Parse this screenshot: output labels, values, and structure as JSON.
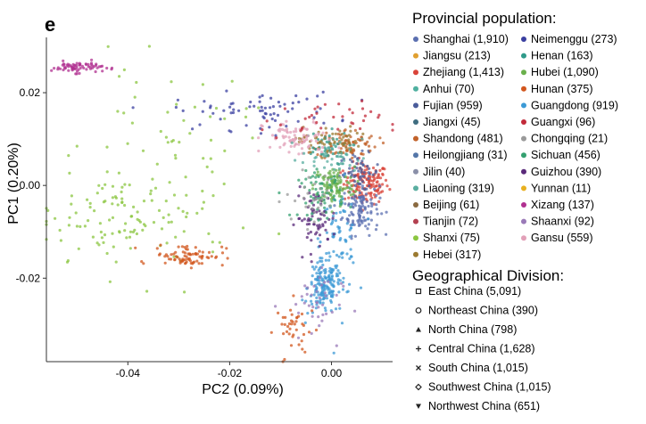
{
  "panel_letter": "e",
  "chart_data": {
    "type": "scatter",
    "xlabel": "PC2 (0.09%)",
    "ylabel": "PC1 (0.20%)",
    "xlim": [
      -0.056,
      0.012
    ],
    "ylim": [
      -0.038,
      0.03
    ],
    "x_ticks": [
      -0.04,
      -0.02,
      0.0
    ],
    "x_tick_labels": [
      "-0.04",
      "-0.02",
      "0.00"
    ],
    "y_ticks": [
      -0.02,
      0.0,
      0.02
    ],
    "y_tick_labels": [
      "-0.02",
      "0.00",
      "0.02"
    ],
    "grid": false,
    "legend_placement": "right",
    "provincial_legend_title": "Provincial population:",
    "provincial_legend_col1": [
      {
        "label": "Shanghai (1,910)",
        "color": "#5b6fb0"
      },
      {
        "label": "Jiangsu (213)",
        "color": "#e0a030"
      },
      {
        "label": "Zhejiang (1,413)",
        "color": "#d9443a"
      },
      {
        "label": "Anhui (70)",
        "color": "#4fb0a0"
      },
      {
        "label": "Fujian (959)",
        "color": "#4a5c9a"
      },
      {
        "label": "Jiangxi (45)",
        "color": "#3f6d80"
      },
      {
        "label": "Shandong (481)",
        "color": "#c2622a"
      },
      {
        "label": "Heilongjiang (31)",
        "color": "#5476a8"
      },
      {
        "label": "Jilin (40)",
        "color": "#8a8fa8"
      },
      {
        "label": "Liaoning (319)",
        "color": "#5aaea0"
      },
      {
        "label": "Beijing (61)",
        "color": "#8a6a40"
      },
      {
        "label": "Tianjin (72)",
        "color": "#b34050"
      },
      {
        "label": "Shanxi (75)",
        "color": "#8bc640"
      },
      {
        "label": "Hebei (317)",
        "color": "#9b7a30"
      }
    ],
    "provincial_legend_col2": [
      {
        "label": "Neimenggu (273)",
        "color": "#3a3fa0"
      },
      {
        "label": "Henan (163)",
        "color": "#2f9a8a"
      },
      {
        "label": "Hubei (1,090)",
        "color": "#6ab04c"
      },
      {
        "label": "Hunan (375)",
        "color": "#d2571e"
      },
      {
        "label": "Guangdong (919)",
        "color": "#3c9ad6"
      },
      {
        "label": "Guangxi (96)",
        "color": "#c22a3a"
      },
      {
        "label": "Chongqing (21)",
        "color": "#9a9a9a"
      },
      {
        "label": "Sichuan (456)",
        "color": "#34a070"
      },
      {
        "label": "Guizhou (390)",
        "color": "#5a2a7a"
      },
      {
        "label": "Yunnan (11)",
        "color": "#e8b020"
      },
      {
        "label": "Xizang (137)",
        "color": "#b03090"
      },
      {
        "label": "Shaanxi (92)",
        "color": "#9a7ab8"
      },
      {
        "label": "Gansu (559)",
        "color": "#e2a0b8"
      }
    ],
    "geo_legend_title": "Geographical Division:",
    "geo_legend": [
      {
        "label": "East China (5,091)",
        "symbol": "square"
      },
      {
        "label": "Northeast China (390)",
        "symbol": "circle"
      },
      {
        "label": "North China (798)",
        "symbol": "triangle-up"
      },
      {
        "label": "Central China (1,628)",
        "symbol": "plus"
      },
      {
        "label": "South China (1,015)",
        "symbol": "cross"
      },
      {
        "label": "Southwest China (1,015)",
        "symbol": "diamond"
      },
      {
        "label": "Northwest China (651)",
        "symbol": "triangle-down"
      }
    ],
    "series": [
      {
        "name": "Zhejiang (1,413)",
        "color": "#d9443a",
        "cx": 0.0068,
        "cy": 0.0004,
        "sx": 0.0022,
        "sy": 0.0022,
        "n": 140
      },
      {
        "name": "Shanghai (1,910)",
        "color": "#5b6fb0",
        "cx": 0.0058,
        "cy": -0.005,
        "sx": 0.0018,
        "sy": 0.0028,
        "n": 110
      },
      {
        "name": "Fujian (959)",
        "color": "#4a5c9a",
        "cx": 0.0055,
        "cy": 0.0028,
        "sx": 0.002,
        "sy": 0.002,
        "n": 60
      },
      {
        "name": "Guangdong (919)",
        "color": "#3c9ad6",
        "cx": -0.0015,
        "cy": -0.022,
        "sx": 0.0016,
        "sy": 0.003,
        "n": 150
      },
      {
        "name": "Guangdong (919)",
        "color": "#3c9ad6",
        "cx": 0.0015,
        "cy": -0.012,
        "sx": 0.0018,
        "sy": 0.006,
        "n": 90
      },
      {
        "name": "Hubei (1,090)",
        "color": "#6ab04c",
        "cx": 0.0005,
        "cy": 0.0,
        "sx": 0.002,
        "sy": 0.002,
        "n": 110
      },
      {
        "name": "Shandong (481)",
        "color": "#c2622a",
        "cx": 0.003,
        "cy": 0.009,
        "sx": 0.003,
        "sy": 0.0016,
        "n": 80
      },
      {
        "name": "Henan (163)",
        "color": "#2f9a8a",
        "cx": -0.0015,
        "cy": 0.008,
        "sx": 0.0025,
        "sy": 0.0018,
        "n": 45
      },
      {
        "name": "Hebei (317)",
        "color": "#9b7a30",
        "cx": -0.0005,
        "cy": 0.0095,
        "sx": 0.003,
        "sy": 0.0016,
        "n": 55
      },
      {
        "name": "Gansu (559)",
        "color": "#e2a0b8",
        "cx": -0.0065,
        "cy": 0.01,
        "sx": 0.0035,
        "sy": 0.002,
        "n": 80
      },
      {
        "name": "Neimenggu (273)",
        "color": "#3a3fa0",
        "cx": -0.015,
        "cy": 0.016,
        "sx": 0.008,
        "sy": 0.002,
        "n": 70
      },
      {
        "name": "Guizhou (390)",
        "color": "#5a2a7a",
        "cx": -0.003,
        "cy": -0.007,
        "sx": 0.002,
        "sy": 0.003,
        "n": 70
      },
      {
        "name": "Sichuan (456)",
        "color": "#34a070",
        "cx": -0.002,
        "cy": -0.002,
        "sx": 0.0022,
        "sy": 0.0025,
        "n": 60
      },
      {
        "name": "Hunan (375)",
        "color": "#d2571e",
        "cx": -0.007,
        "cy": -0.031,
        "sx": 0.002,
        "sy": 0.003,
        "n": 40
      },
      {
        "name": "Xizang (137)",
        "color": "#b03090",
        "cx": -0.05,
        "cy": 0.0255,
        "sx": 0.0025,
        "sy": 0.0006,
        "n": 70
      },
      {
        "name": "Shanxi (75)",
        "color": "#8bc640",
        "cx": -0.04,
        "cy": -0.008,
        "sx": 0.01,
        "sy": 0.006,
        "n": 120
      },
      {
        "name": "Shanxi (75)",
        "color": "#8bc640",
        "cx": -0.032,
        "cy": 0.01,
        "sx": 0.008,
        "sy": 0.008,
        "n": 50
      },
      {
        "name": "Hunan (375)",
        "color": "#d2571e",
        "cx": -0.028,
        "cy": -0.015,
        "sx": 0.0035,
        "sy": 0.0012,
        "n": 80
      },
      {
        "name": "Shaanxi (92)",
        "color": "#9a7ab8",
        "cx": -0.004,
        "cy": -0.026,
        "sx": 0.003,
        "sy": 0.004,
        "n": 40
      },
      {
        "name": "Guangxi (96)",
        "color": "#c22a3a",
        "cx": -0.002,
        "cy": 0.014,
        "sx": 0.006,
        "sy": 0.002,
        "n": 35
      },
      {
        "name": "Liaoning (319)",
        "color": "#5aaea0",
        "cx": 0.0,
        "cy": 0.006,
        "sx": 0.003,
        "sy": 0.002,
        "n": 35
      },
      {
        "name": "Chongqing (21)",
        "color": "#9a9a9a",
        "cx": -0.003,
        "cy": -0.003,
        "sx": 0.003,
        "sy": 0.003,
        "n": 30
      }
    ]
  }
}
